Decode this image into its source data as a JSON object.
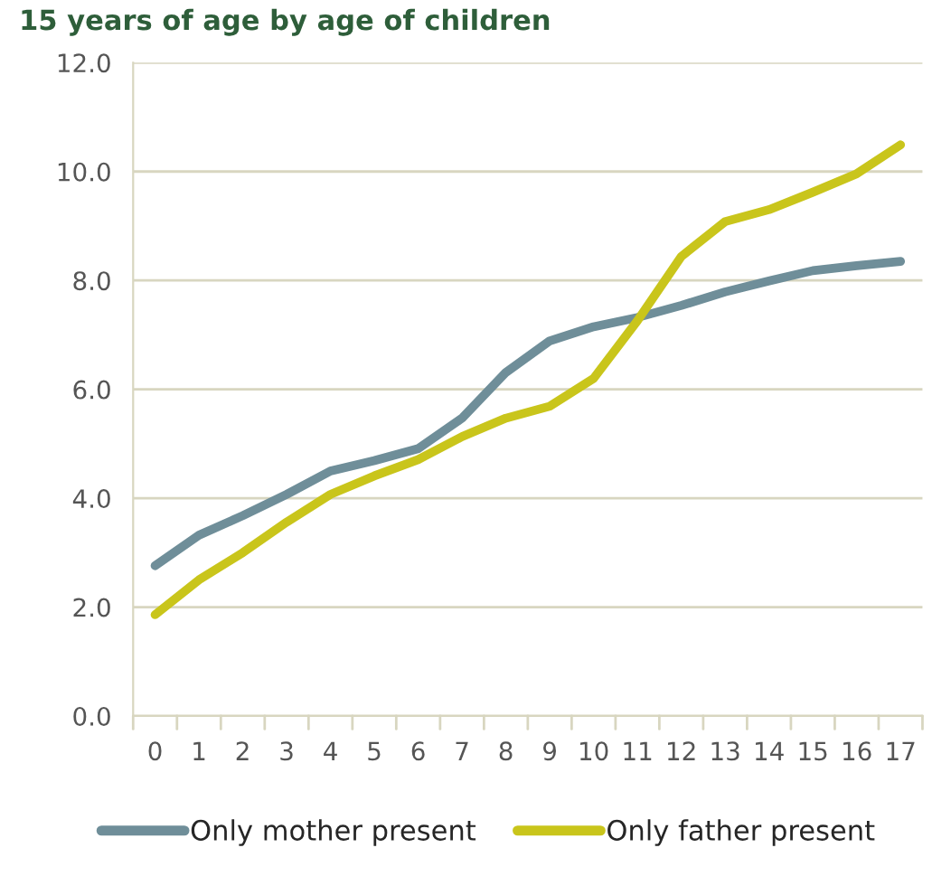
{
  "chart_data": {
    "type": "line",
    "title": "15 years of age by age of children",
    "categories": [
      "0",
      "1",
      "2",
      "3",
      "4",
      "5",
      "6",
      "7",
      "8",
      "9",
      "10",
      "11",
      "12",
      "13",
      "14",
      "15",
      "16",
      "17"
    ],
    "series": [
      {
        "name": "Only mother present",
        "color": "#6f8e99",
        "values": [
          2.76,
          3.32,
          3.68,
          4.07,
          4.5,
          4.69,
          4.91,
          5.47,
          6.31,
          6.89,
          7.15,
          7.32,
          7.54,
          7.79,
          7.99,
          8.18,
          8.27,
          8.35
        ]
      },
      {
        "name": "Only father present",
        "color": "#c9c51b",
        "values": [
          1.86,
          2.5,
          3.0,
          3.56,
          4.07,
          4.41,
          4.71,
          5.13,
          5.47,
          5.69,
          6.2,
          7.26,
          8.44,
          9.08,
          9.3,
          9.62,
          9.96,
          10.49
        ]
      }
    ],
    "ylim": [
      0,
      12
    ],
    "yticks": [
      {
        "value": 0,
        "label": "0.0"
      },
      {
        "value": 2,
        "label": "2.0"
      },
      {
        "value": 4,
        "label": "4.0"
      },
      {
        "value": 6,
        "label": "6.0"
      },
      {
        "value": 8,
        "label": "8.0"
      },
      {
        "value": 10,
        "label": "10.0"
      },
      {
        "value": 12,
        "label": "12.0"
      }
    ],
    "grid": "y",
    "legend": "bottom",
    "marker": "none",
    "line_style": "solid"
  }
}
